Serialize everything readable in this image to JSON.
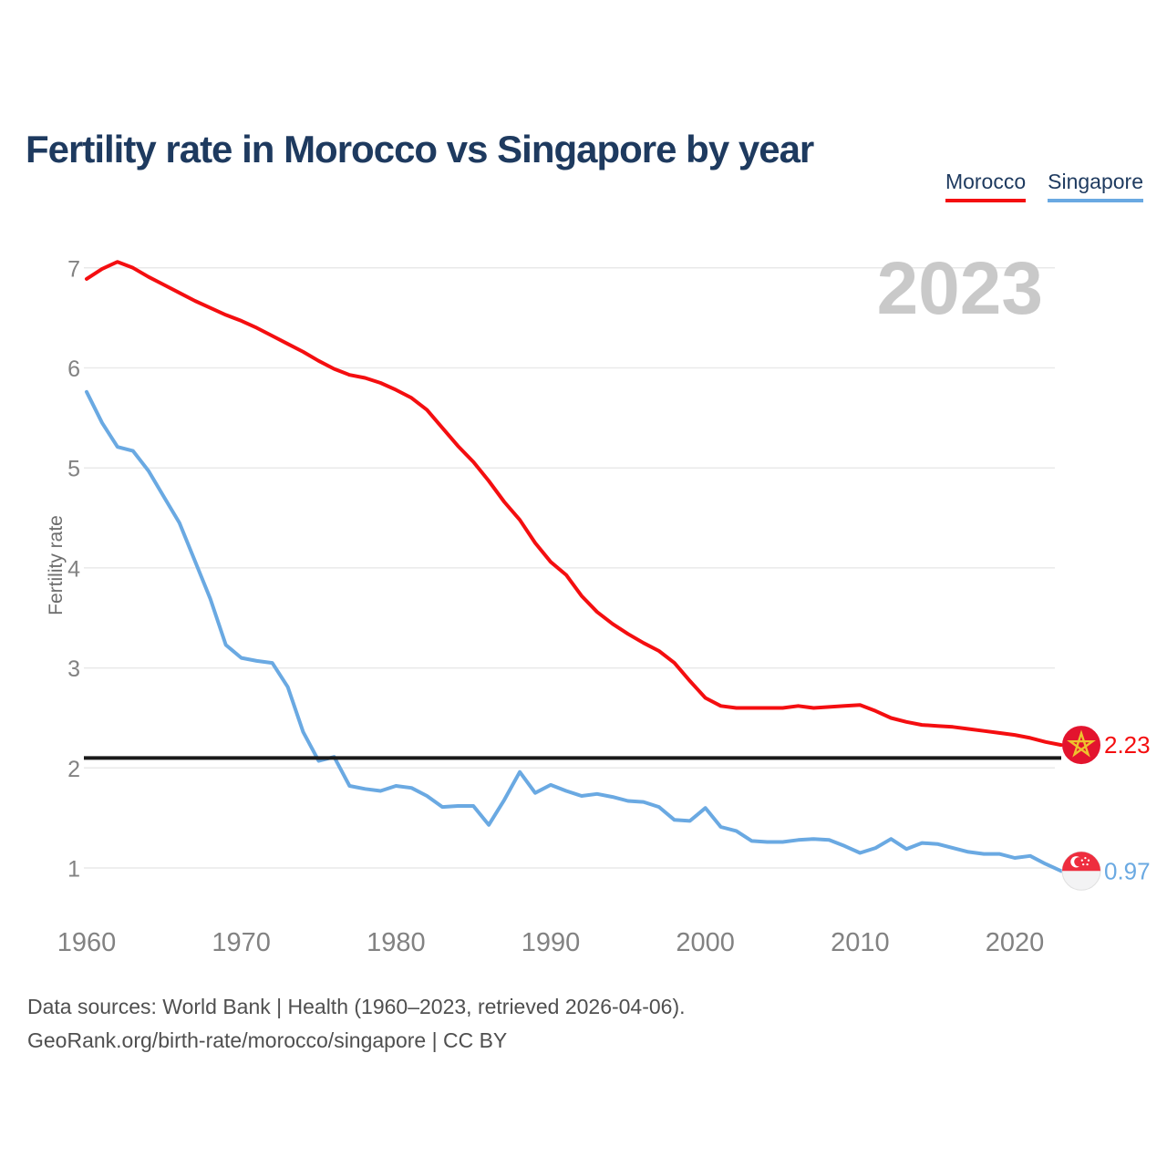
{
  "title": "Fertility rate in Morocco vs Singapore by year",
  "watermark": "2023",
  "legend": {
    "morocco": {
      "label": "Morocco",
      "color": "#f40e10"
    },
    "singapore": {
      "label": "Singapore",
      "color": "#6aa9e2"
    }
  },
  "end_labels": {
    "morocco": "2.23",
    "singapore": "0.97"
  },
  "footer": {
    "line1": "Data sources: World Bank | Health (1960–2023, retrieved 2026-04-06).",
    "line2": "GeoRank.org/birth-rate/morocco/singapore | CC BY"
  },
  "colors": {
    "title_text": "#1e3a5f",
    "axis_text": "#828282",
    "gridline": "#e9e9e9",
    "reference_line": "#1a1a1a",
    "watermark": "#c9c9c9",
    "morocco_flag_red": "#e3142e",
    "morocco_flag_star": "#eec32e",
    "singapore_flag_red": "#ee2d3e",
    "singapore_flag_white": "#f3f3f4"
  },
  "chart_data": {
    "type": "line",
    "title": "Fertility rate in Morocco vs Singapore by year",
    "ylabel": "Fertility rate",
    "xlabel": "",
    "grid": "horizontal",
    "legend_position": "top-right",
    "xlim": [
      1960,
      2023
    ],
    "ylim": [
      0.7,
      7.35
    ],
    "xticks": [
      1960,
      1970,
      1980,
      1990,
      2000,
      2010,
      2020
    ],
    "yticks": [
      1,
      2,
      3,
      4,
      5,
      6,
      7
    ],
    "reference_line": {
      "value": 2.1
    },
    "x": [
      1960,
      1961,
      1962,
      1963,
      1964,
      1965,
      1966,
      1967,
      1968,
      1969,
      1970,
      1971,
      1972,
      1973,
      1974,
      1975,
      1976,
      1977,
      1978,
      1979,
      1980,
      1981,
      1982,
      1983,
      1984,
      1985,
      1986,
      1987,
      1988,
      1989,
      1990,
      1991,
      1992,
      1993,
      1994,
      1995,
      1996,
      1997,
      1998,
      1999,
      2000,
      2001,
      2002,
      2003,
      2004,
      2005,
      2006,
      2007,
      2008,
      2009,
      2010,
      2011,
      2012,
      2013,
      2014,
      2015,
      2016,
      2017,
      2018,
      2019,
      2020,
      2021,
      2022,
      2023
    ],
    "series": [
      {
        "name": "Morocco",
        "color": "#f40e10",
        "final_value": 2.23,
        "values": [
          6.89,
          6.99,
          7.06,
          7.0,
          6.91,
          6.83,
          6.75,
          6.67,
          6.6,
          6.53,
          6.47,
          6.4,
          6.32,
          6.24,
          6.16,
          6.07,
          5.99,
          5.93,
          5.9,
          5.85,
          5.78,
          5.7,
          5.58,
          5.4,
          5.22,
          5.06,
          4.87,
          4.66,
          4.48,
          4.25,
          4.06,
          3.93,
          3.72,
          3.56,
          3.44,
          3.34,
          3.25,
          3.17,
          3.05,
          2.87,
          2.7,
          2.62,
          2.6,
          2.6,
          2.6,
          2.6,
          2.62,
          2.6,
          2.61,
          2.62,
          2.63,
          2.57,
          2.5,
          2.46,
          2.43,
          2.42,
          2.41,
          2.39,
          2.37,
          2.35,
          2.33,
          2.3,
          2.26,
          2.23
        ]
      },
      {
        "name": "Singapore",
        "color": "#6aa9e2",
        "final_value": 0.97,
        "values": [
          5.76,
          5.45,
          5.21,
          5.17,
          4.97,
          4.71,
          4.45,
          4.07,
          3.69,
          3.23,
          3.1,
          3.07,
          3.05,
          2.81,
          2.36,
          2.07,
          2.11,
          1.82,
          1.79,
          1.77,
          1.82,
          1.8,
          1.72,
          1.61,
          1.62,
          1.62,
          1.43,
          1.68,
          1.96,
          1.75,
          1.83,
          1.77,
          1.72,
          1.74,
          1.71,
          1.67,
          1.66,
          1.61,
          1.48,
          1.47,
          1.6,
          1.41,
          1.37,
          1.27,
          1.26,
          1.26,
          1.28,
          1.29,
          1.28,
          1.22,
          1.15,
          1.2,
          1.29,
          1.19,
          1.25,
          1.24,
          1.2,
          1.16,
          1.14,
          1.14,
          1.1,
          1.12,
          1.04,
          0.97
        ]
      }
    ]
  }
}
